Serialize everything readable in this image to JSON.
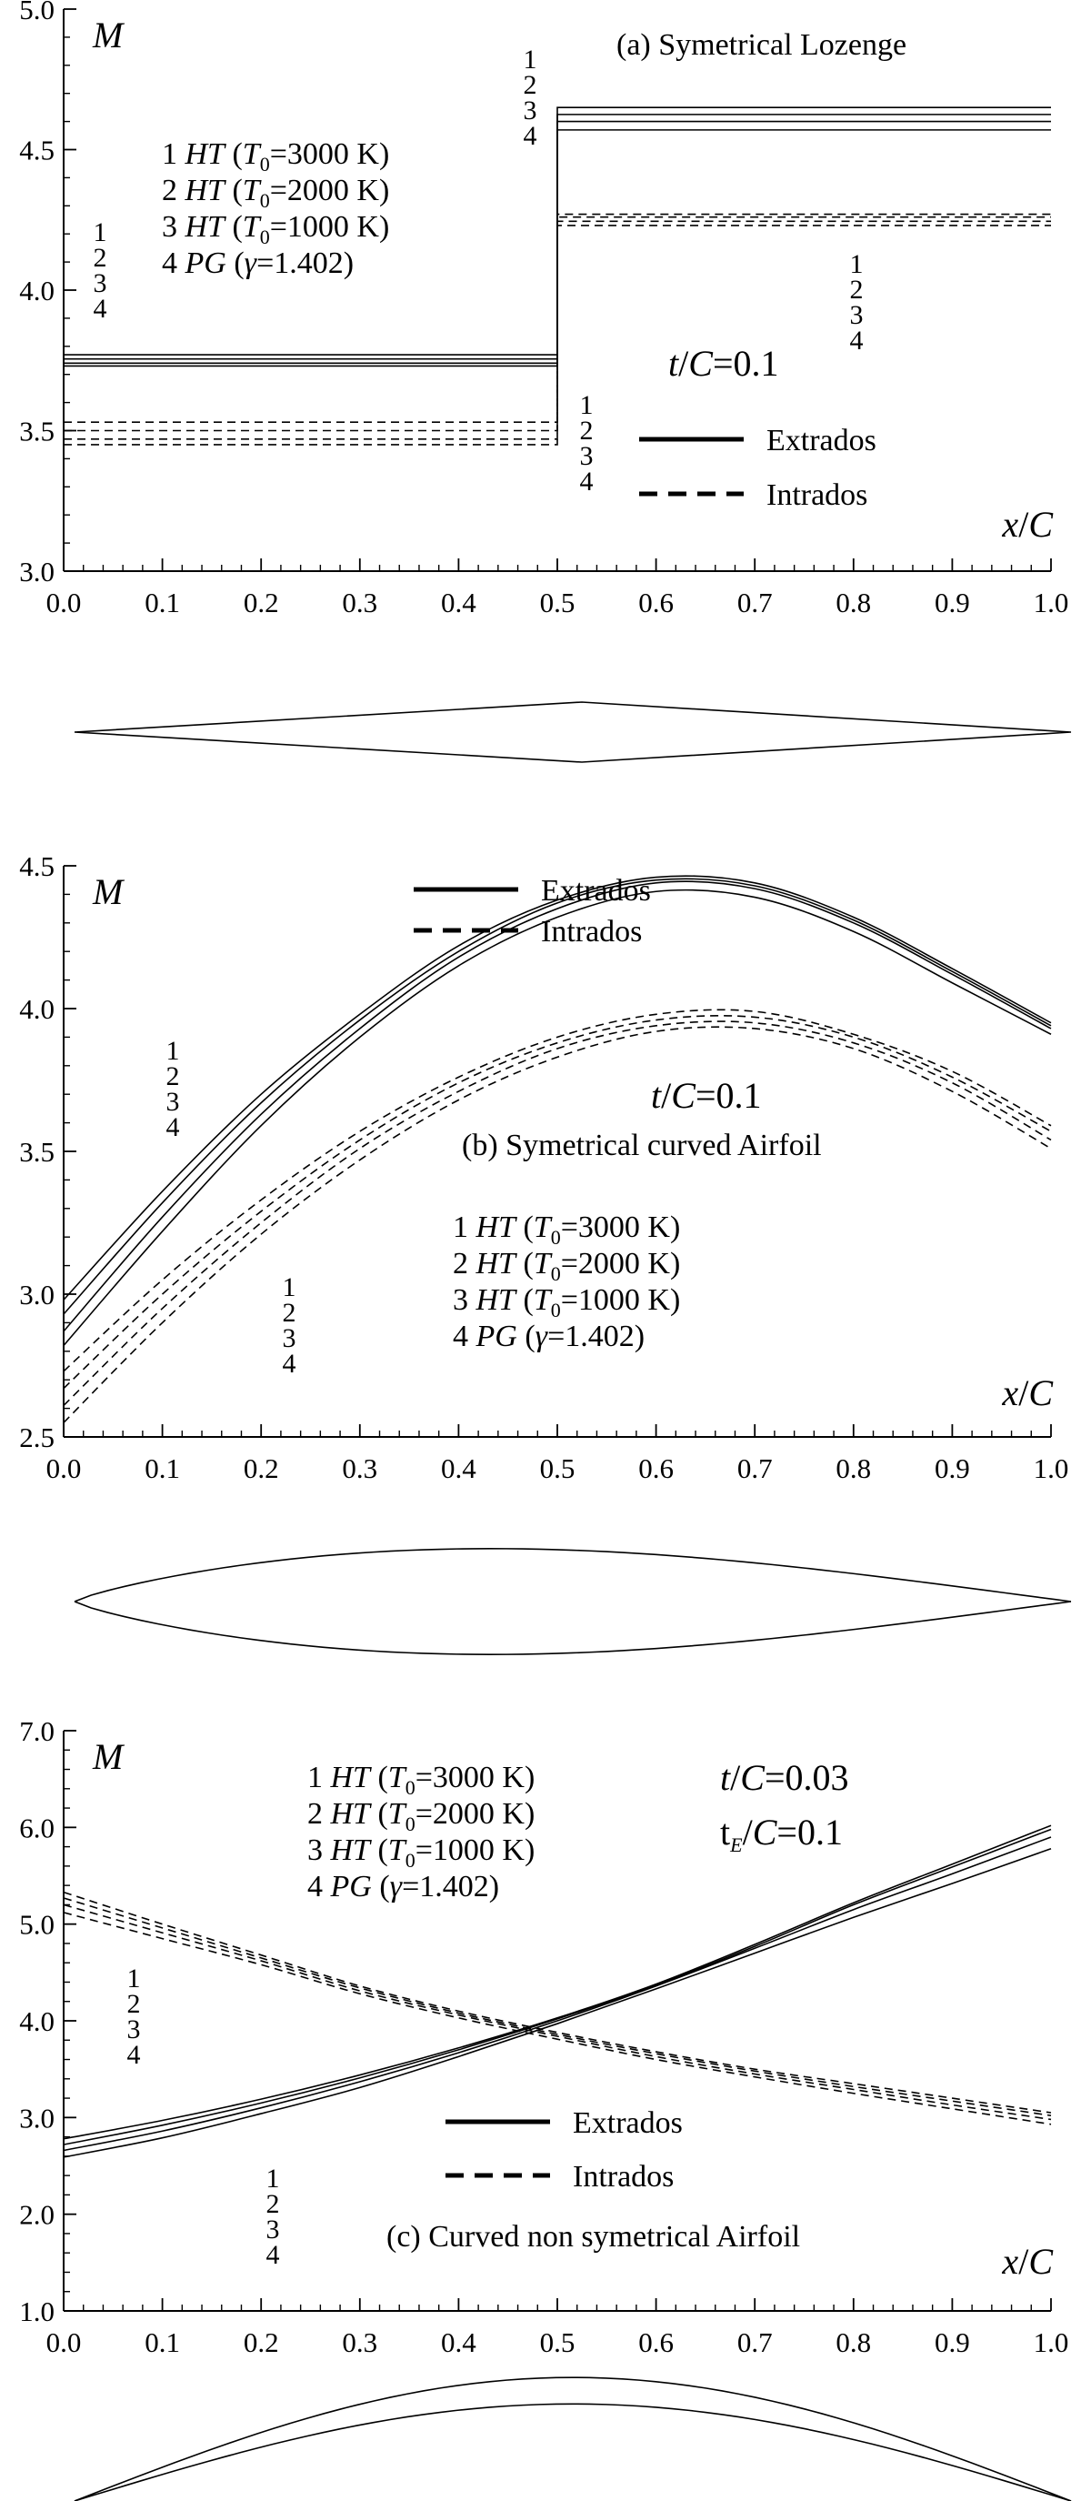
{
  "chart_data": [
    {
      "type": "line",
      "title": "(a)  Symetrical Lozenge",
      "ylabel": "M",
      "xlabel": "x/C",
      "xlim": [
        0.0,
        1.0
      ],
      "ylim": [
        3.0,
        5.0
      ],
      "x_ticks": [
        "0.0",
        "0.1",
        "0.2",
        "0.3",
        "0.4",
        "0.5",
        "0.6",
        "0.7",
        "0.8",
        "0.9",
        "1.0"
      ],
      "y_ticks": [
        "3.0",
        "3.5",
        "4.0",
        "4.5",
        "5.0"
      ],
      "annotation": {
        "prefix": "t/C",
        "value": "=0.1"
      },
      "legend_cases": [
        {
          "num": "1",
          "model": "HT",
          "param": "(T",
          "sub": "0",
          "value": "=3000 K)"
        },
        {
          "num": "2",
          "model": "HT",
          "param": "(T",
          "sub": "0",
          "value": "=2000 K)"
        },
        {
          "num": "3",
          "model": "HT",
          "param": "(T",
          "sub": "0",
          "value": "=1000 K)"
        },
        {
          "num": "4",
          "model": "PG",
          "param": "(γ",
          "sub": "",
          "value": "=1.402)"
        }
      ],
      "legend_styles": [
        {
          "label": "Extrados",
          "style": "solid"
        },
        {
          "label": "Intrados",
          "style": "dashed"
        }
      ],
      "series_markers": [
        "1",
        "2",
        "3",
        "4"
      ],
      "grid": false,
      "series": [
        {
          "case": "1",
          "surface": "Extrados",
          "style": "solid",
          "x": [
            0.0,
            0.5,
            0.5,
            1.0
          ],
          "y": [
            3.77,
            3.77,
            4.65,
            4.65
          ]
        },
        {
          "case": "2",
          "surface": "Extrados",
          "style": "solid",
          "x": [
            0.0,
            0.5,
            0.5,
            1.0
          ],
          "y": [
            3.755,
            3.755,
            4.625,
            4.625
          ]
        },
        {
          "case": "3",
          "surface": "Extrados",
          "style": "solid",
          "x": [
            0.0,
            0.5,
            0.5,
            1.0
          ],
          "y": [
            3.74,
            3.74,
            4.6,
            4.6
          ]
        },
        {
          "case": "4",
          "surface": "Extrados",
          "style": "solid",
          "x": [
            0.0,
            0.5,
            0.5,
            1.0
          ],
          "y": [
            3.73,
            3.73,
            4.57,
            4.57
          ]
        },
        {
          "case": "1",
          "surface": "Intrados",
          "style": "dashed",
          "x": [
            0.0,
            0.5,
            0.5,
            1.0
          ],
          "y": [
            3.53,
            3.53,
            4.27,
            4.27
          ]
        },
        {
          "case": "2",
          "surface": "Intrados",
          "style": "dashed",
          "x": [
            0.0,
            0.5,
            0.5,
            1.0
          ],
          "y": [
            3.5,
            3.5,
            4.26,
            4.26
          ]
        },
        {
          "case": "3",
          "surface": "Intrados",
          "style": "dashed",
          "x": [
            0.0,
            0.5,
            0.5,
            1.0
          ],
          "y": [
            3.47,
            3.47,
            4.245,
            4.245
          ]
        },
        {
          "case": "4",
          "surface": "Intrados",
          "style": "dashed",
          "x": [
            0.0,
            0.5,
            0.5,
            1.0
          ],
          "y": [
            3.45,
            3.45,
            4.23,
            4.23
          ]
        }
      ],
      "profile": {
        "shape": "lozenge",
        "upper_max": 0.1,
        "lower_max": 0.1
      }
    },
    {
      "type": "line",
      "title": "(b)  Symetrical curved Airfoil",
      "ylabel": "M",
      "xlabel": "x/C",
      "xlim": [
        0.0,
        1.0
      ],
      "ylim": [
        2.5,
        4.5
      ],
      "x_ticks": [
        "0.0",
        "0.1",
        "0.2",
        "0.3",
        "0.4",
        "0.5",
        "0.6",
        "0.7",
        "0.8",
        "0.9",
        "1.0"
      ],
      "y_ticks": [
        "2.5",
        "3.0",
        "3.5",
        "4.0",
        "4.5"
      ],
      "annotation": {
        "prefix": "t/C",
        "value": "=0.1"
      },
      "legend_cases": [
        {
          "num": "1",
          "model": "HT",
          "param": "(T",
          "sub": "0",
          "value": "=3000 K)"
        },
        {
          "num": "2",
          "model": "HT",
          "param": "(T",
          "sub": "0",
          "value": "=2000 K)"
        },
        {
          "num": "3",
          "model": "HT",
          "param": "(T",
          "sub": "0",
          "value": "=1000 K)"
        },
        {
          "num": "4",
          "model": "PG",
          "param": "(γ",
          "sub": "",
          "value": "=1.402)"
        }
      ],
      "legend_styles": [
        {
          "label": "Extrados",
          "style": "solid"
        },
        {
          "label": "Intrados",
          "style": "dashed"
        }
      ],
      "series_markers": [
        "1",
        "2",
        "3",
        "4"
      ],
      "grid": false,
      "series": [
        {
          "case": "1",
          "surface": "Extrados",
          "style": "solid",
          "x": [
            0.0,
            0.1,
            0.2,
            0.3,
            0.4,
            0.5,
            0.6,
            0.7,
            0.8,
            0.9,
            1.0
          ],
          "y": [
            2.98,
            3.36,
            3.7,
            3.98,
            4.22,
            4.38,
            4.46,
            4.44,
            4.32,
            4.14,
            3.95
          ]
        },
        {
          "case": "2",
          "surface": "Extrados",
          "style": "solid",
          "x": [
            0.0,
            0.1,
            0.2,
            0.3,
            0.4,
            0.5,
            0.6,
            0.7,
            0.8,
            0.9,
            1.0
          ],
          "y": [
            2.93,
            3.32,
            3.67,
            3.96,
            4.2,
            4.37,
            4.45,
            4.43,
            4.31,
            4.13,
            3.94
          ]
        },
        {
          "case": "3",
          "surface": "Extrados",
          "style": "solid",
          "x": [
            0.0,
            0.1,
            0.2,
            0.3,
            0.4,
            0.5,
            0.6,
            0.7,
            0.8,
            0.9,
            1.0
          ],
          "y": [
            2.87,
            3.27,
            3.63,
            3.93,
            4.18,
            4.35,
            4.44,
            4.42,
            4.3,
            4.12,
            3.93
          ]
        },
        {
          "case": "4",
          "surface": "Extrados",
          "style": "solid",
          "x": [
            0.0,
            0.1,
            0.2,
            0.3,
            0.4,
            0.5,
            0.6,
            0.7,
            0.8,
            0.9,
            1.0
          ],
          "y": [
            2.82,
            3.22,
            3.59,
            3.9,
            4.15,
            4.32,
            4.41,
            4.39,
            4.27,
            4.09,
            3.91
          ]
        },
        {
          "case": "1",
          "surface": "Intrados",
          "style": "dashed",
          "x": [
            0.0,
            0.1,
            0.2,
            0.3,
            0.4,
            0.5,
            0.6,
            0.7,
            0.8,
            0.9,
            1.0
          ],
          "y": [
            2.73,
            3.05,
            3.33,
            3.57,
            3.76,
            3.9,
            3.98,
            3.99,
            3.91,
            3.78,
            3.59
          ]
        },
        {
          "case": "2",
          "surface": "Intrados",
          "style": "dashed",
          "x": [
            0.0,
            0.1,
            0.2,
            0.3,
            0.4,
            0.5,
            0.6,
            0.7,
            0.8,
            0.9,
            1.0
          ],
          "y": [
            2.67,
            3.0,
            3.29,
            3.54,
            3.74,
            3.88,
            3.96,
            3.97,
            3.9,
            3.76,
            3.57
          ]
        },
        {
          "case": "3",
          "surface": "Intrados",
          "style": "dashed",
          "x": [
            0.0,
            0.1,
            0.2,
            0.3,
            0.4,
            0.5,
            0.6,
            0.7,
            0.8,
            0.9,
            1.0
          ],
          "y": [
            2.61,
            2.95,
            3.25,
            3.51,
            3.71,
            3.86,
            3.94,
            3.95,
            3.88,
            3.74,
            3.54
          ]
        },
        {
          "case": "4",
          "surface": "Intrados",
          "style": "dashed",
          "x": [
            0.0,
            0.1,
            0.2,
            0.3,
            0.4,
            0.5,
            0.6,
            0.7,
            0.8,
            0.9,
            1.0
          ],
          "y": [
            2.55,
            2.9,
            3.21,
            3.47,
            3.68,
            3.83,
            3.92,
            3.93,
            3.86,
            3.71,
            3.51
          ]
        }
      ],
      "profile": {
        "shape": "curved-symmetric",
        "upper_max": 0.1,
        "lower_max": 0.1
      }
    },
    {
      "type": "line",
      "title": "(c)  Curved non symetrical Airfoil",
      "ylabel": "M",
      "xlabel": "x/C",
      "xlim": [
        0.0,
        1.0
      ],
      "ylim": [
        1.0,
        7.0
      ],
      "x_ticks": [
        "0.0",
        "0.1",
        "0.2",
        "0.3",
        "0.4",
        "0.5",
        "0.6",
        "0.7",
        "0.8",
        "0.9",
        "1.0"
      ],
      "y_ticks": [
        "1.0",
        "2.0",
        "3.0",
        "4.0",
        "5.0",
        "6.0",
        "7.0"
      ],
      "annotation": {
        "prefix": "t/C",
        "value": "=0.03"
      },
      "annotation2": {
        "prefix": "t",
        "sub": "E",
        "suffix": "/C",
        "value": "=0.1"
      },
      "legend_cases": [
        {
          "num": "1",
          "model": "HT",
          "param": "(T",
          "sub": "0",
          "value": "=3000 K)"
        },
        {
          "num": "2",
          "model": "HT",
          "param": "(T",
          "sub": "0",
          "value": "=2000 K)"
        },
        {
          "num": "3",
          "model": "HT",
          "param": "(T",
          "sub": "0",
          "value": "=1000 K)"
        },
        {
          "num": "4",
          "model": "PG",
          "param": "(γ",
          "sub": "",
          "value": "=1.402)"
        }
      ],
      "legend_styles": [
        {
          "label": "Extrados",
          "style": "solid"
        },
        {
          "label": "Intrados",
          "style": "dashed"
        }
      ],
      "series_markers": [
        "1",
        "2",
        "3",
        "4"
      ],
      "grid": false,
      "series": [
        {
          "case": "1",
          "surface": "Extrados",
          "style": "solid",
          "x": [
            0.0,
            0.1,
            0.2,
            0.3,
            0.4,
            0.5,
            0.6,
            0.7,
            0.8,
            0.9,
            1.0
          ],
          "y": [
            2.78,
            2.97,
            3.19,
            3.44,
            3.72,
            4.03,
            4.38,
            4.79,
            5.22,
            5.62,
            6.02
          ]
        },
        {
          "case": "2",
          "surface": "Extrados",
          "style": "solid",
          "x": [
            0.0,
            0.1,
            0.2,
            0.3,
            0.4,
            0.5,
            0.6,
            0.7,
            0.8,
            0.9,
            1.0
          ],
          "y": [
            2.72,
            2.92,
            3.15,
            3.41,
            3.7,
            4.02,
            4.37,
            4.77,
            5.2,
            5.59,
            5.98
          ]
        },
        {
          "case": "3",
          "surface": "Extrados",
          "style": "solid",
          "x": [
            0.0,
            0.1,
            0.2,
            0.3,
            0.4,
            0.5,
            0.6,
            0.7,
            0.8,
            0.9,
            1.0
          ],
          "y": [
            2.66,
            2.86,
            3.1,
            3.37,
            3.67,
            4.0,
            4.36,
            4.75,
            5.15,
            5.52,
            5.9
          ]
        },
        {
          "case": "4",
          "surface": "Extrados",
          "style": "solid",
          "x": [
            0.0,
            0.1,
            0.2,
            0.3,
            0.4,
            0.5,
            0.6,
            0.7,
            0.8,
            0.9,
            1.0
          ],
          "y": [
            2.59,
            2.79,
            3.04,
            3.31,
            3.63,
            3.97,
            4.33,
            4.7,
            5.07,
            5.42,
            5.78
          ]
        },
        {
          "case": "1",
          "surface": "Intrados",
          "style": "dashed",
          "x": [
            0.0,
            0.1,
            0.2,
            0.3,
            0.4,
            0.5,
            0.6,
            0.7,
            0.8,
            0.9,
            1.0
          ],
          "y": [
            5.33,
            5.0,
            4.68,
            4.36,
            4.1,
            3.88,
            3.68,
            3.5,
            3.35,
            3.2,
            3.05
          ]
        },
        {
          "case": "2",
          "surface": "Intrados",
          "style": "dashed",
          "x": [
            0.0,
            0.1,
            0.2,
            0.3,
            0.4,
            0.5,
            0.6,
            0.7,
            0.8,
            0.9,
            1.0
          ],
          "y": [
            5.27,
            4.96,
            4.65,
            4.34,
            4.08,
            3.86,
            3.66,
            3.48,
            3.32,
            3.17,
            3.02
          ]
        },
        {
          "case": "3",
          "surface": "Intrados",
          "style": "dashed",
          "x": [
            0.0,
            0.1,
            0.2,
            0.3,
            0.4,
            0.5,
            0.6,
            0.7,
            0.8,
            0.9,
            1.0
          ],
          "y": [
            5.2,
            4.91,
            4.62,
            4.31,
            4.06,
            3.84,
            3.63,
            3.45,
            3.29,
            3.13,
            2.98
          ]
        },
        {
          "case": "4",
          "surface": "Intrados",
          "style": "dashed",
          "x": [
            0.0,
            0.1,
            0.2,
            0.3,
            0.4,
            0.5,
            0.6,
            0.7,
            0.8,
            0.9,
            1.0
          ],
          "y": [
            5.12,
            4.85,
            4.58,
            4.28,
            4.03,
            3.81,
            3.6,
            3.42,
            3.25,
            3.09,
            2.93
          ]
        }
      ],
      "profile": {
        "shape": "curved-cambered",
        "upper_max": 0.13,
        "lower_max": 0.1
      }
    }
  ]
}
